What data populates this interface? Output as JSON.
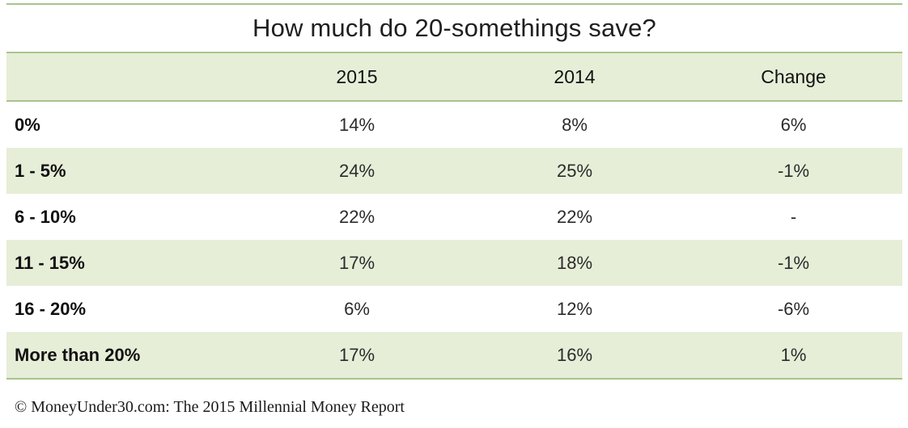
{
  "chart_data": {
    "type": "table",
    "title": "How much do 20-somethings save?",
    "columns": [
      "",
      "2015",
      "2014",
      "Change"
    ],
    "rows": [
      {
        "label": "0%",
        "y2015": "14%",
        "y2014": "8%",
        "change": "6%"
      },
      {
        "label": "1 - 5%",
        "y2015": "24%",
        "y2014": "25%",
        "change": "-1%"
      },
      {
        "label": "6 - 10%",
        "y2015": "22%",
        "y2014": "22%",
        "change": "-"
      },
      {
        "label": "11 - 15%",
        "y2015": "17%",
        "y2014": "18%",
        "change": "-1%"
      },
      {
        "label": "16 - 20%",
        "y2015": "6%",
        "y2014": "12%",
        "change": "-6%"
      },
      {
        "label": "More than 20%",
        "y2015": "17%",
        "y2014": "16%",
        "change": "1%"
      }
    ]
  },
  "footer": {
    "source": "© MoneyUnder30.com: The 2015 Millennial Money Report"
  },
  "colors": {
    "band_fill": "#e6eed8",
    "rule_line": "#a9c48a"
  }
}
